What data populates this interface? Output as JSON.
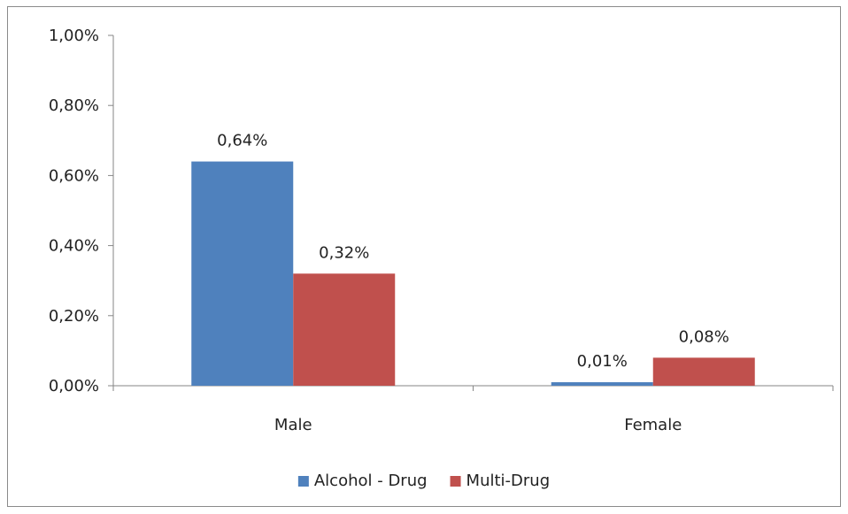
{
  "chart_data": {
    "type": "bar",
    "title": "",
    "xlabel": "",
    "ylabel": "",
    "categories": [
      "Male",
      "Female"
    ],
    "ylim": [
      0,
      1.0
    ],
    "yticks": [
      "0,00%",
      "0,20%",
      "0,40%",
      "0,60%",
      "0,80%",
      "1,00%"
    ],
    "series": [
      {
        "name": "Alcohol - Drug",
        "color": "#4F81BD",
        "values": [
          0.64,
          0.01
        ],
        "labels": [
          "0,64%",
          "0,01%"
        ]
      },
      {
        "name": "Multi-Drug",
        "color": "#C0504D",
        "values": [
          0.32,
          0.08
        ],
        "labels": [
          "0,32%",
          "0,08%"
        ]
      }
    ],
    "grid": false,
    "legend": "bottom"
  }
}
